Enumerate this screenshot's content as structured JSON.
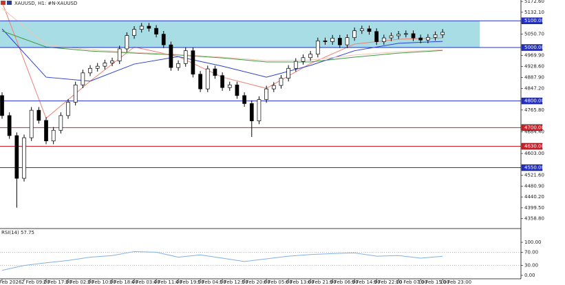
{
  "chart_data": [
    {
      "type": "candlestick",
      "title": "XAUUSD, H1:  #N-XAUUSD",
      "categories": [
        "Feb 2026",
        null,
        null,
        "2 Feb 09:00",
        null,
        null,
        "2 Feb 17:00",
        null,
        null,
        "3 Feb 02:00",
        null,
        null,
        "3 Feb 10:00",
        null,
        null,
        "3 Feb 18:00",
        null,
        null,
        "4 Feb 03:00",
        null,
        null,
        "4 Feb 11:00",
        null,
        null,
        "4 Feb 19:00",
        null,
        null,
        "5 Feb 04:00",
        null,
        null,
        "5 Feb 12:00",
        null,
        null,
        "5 Feb 20:00",
        null,
        null,
        "6 Feb 05:00",
        null,
        null,
        "6 Feb 13:00",
        null,
        null,
        "6 Feb 21:00",
        null,
        null,
        "9 Feb 06:00",
        null,
        null,
        "9 Feb 14:00",
        null,
        null,
        "9 Feb 22:00",
        null,
        null,
        "10 Feb 07:00",
        null,
        null,
        "10 Feb 15:00",
        null,
        null,
        "10 Feb 23:00"
      ],
      "open": [
        4820,
        4745,
        4670,
        4510,
        4662,
        4765,
        4727,
        4650,
        4690,
        4745,
        4795,
        4860,
        4905,
        4922,
        4930,
        4942,
        4950,
        4995,
        5045,
        5068,
        5080,
        5072,
        5050,
        5010,
        4925,
        4940,
        4988,
        4900,
        4845,
        4920,
        4895,
        4850,
        4860,
        4820,
        4790,
        4725,
        4805,
        4845,
        4858,
        4885,
        4922,
        4948,
        4962,
        4975,
        5025,
        5022,
        5035,
        5010,
        5037,
        5063,
        5070,
        5060,
        5022,
        5036,
        5044,
        5050,
        5052,
        5036,
        5028,
        5038,
        5048
      ],
      "high": [
        4832,
        4757,
        4682,
        4674,
        4777,
        4777,
        4739,
        4702,
        4757,
        4807,
        4872,
        4917,
        4934,
        4942,
        4954,
        4962,
        5007,
        5057,
        5080,
        5092,
        5092,
        5084,
        5062,
        5022,
        4952,
        5000,
        5000,
        4912,
        4932,
        4932,
        4907,
        4872,
        4872,
        4832,
        4802,
        4817,
        4857,
        4870,
        4897,
        4934,
        4960,
        4974,
        4987,
        5037,
        5037,
        5047,
        5047,
        5049,
        5075,
        5082,
        5082,
        5072,
        5048,
        5056,
        5062,
        5064,
        5064,
        5048,
        5050,
        5060,
        5069
      ],
      "low": [
        4733,
        4658,
        4400,
        4498,
        4650,
        4715,
        4638,
        4638,
        4678,
        4733,
        4783,
        4848,
        4893,
        4910,
        4918,
        4930,
        4938,
        4983,
        5033,
        5056,
        5060,
        5038,
        4998,
        4913,
        4913,
        4928,
        4888,
        4833,
        4833,
        4883,
        4838,
        4838,
        4808,
        4778,
        4665,
        4713,
        4793,
        4833,
        4846,
        4873,
        4910,
        4936,
        4950,
        4963,
        5010,
        5010,
        4998,
        4998,
        5025,
        5051,
        5048,
        5010,
        5010,
        5024,
        5032,
        5038,
        5024,
        5016,
        5016,
        5026,
        5036
      ],
      "close": [
        4745,
        4670,
        4510,
        4662,
        4765,
        4727,
        4650,
        4690,
        4745,
        4795,
        4860,
        4905,
        4922,
        4930,
        4942,
        4950,
        4995,
        5045,
        5068,
        5080,
        5072,
        5050,
        5010,
        4925,
        4940,
        4988,
        4900,
        4845,
        4920,
        4895,
        4850,
        4860,
        4820,
        4790,
        4725,
        4805,
        4845,
        4858,
        4885,
        4922,
        4948,
        4962,
        4975,
        5025,
        5022,
        5035,
        5010,
        5037,
        5063,
        5070,
        5060,
        5022,
        5036,
        5044,
        5050,
        5052,
        5036,
        5028,
        5038,
        5048,
        5057
      ],
      "up_color": "#ffffff",
      "down_color": "#000000",
      "ylim": [
        4327,
        5178
      ],
      "yticks": [
        {
          "value": 5172.6,
          "label": "5172.60"
        },
        {
          "value": 5132.1,
          "label": "5132.10"
        },
        {
          "value": 5050.7,
          "label": "5050.70"
        },
        {
          "value": 4969.9,
          "label": "4969.90"
        },
        {
          "value": 4928.6,
          "label": "4928.60"
        },
        {
          "value": 4887.9,
          "label": "4887.90"
        },
        {
          "value": 4847.2,
          "label": "4847.20"
        },
        {
          "value": 4765.8,
          "label": "4765.80"
        },
        {
          "value": 4684.4,
          "label": "4684.40"
        },
        {
          "value": 4603,
          "label": "4603.00"
        },
        {
          "value": 4521.6,
          "label": "4521.60"
        },
        {
          "value": 4480.9,
          "label": "4480.90"
        },
        {
          "value": 4440.2,
          "label": "4440.20"
        },
        {
          "value": 4399.5,
          "label": "4399.50"
        },
        {
          "value": 4358.8,
          "label": "4358.80"
        }
      ],
      "zone": {
        "from": 5000,
        "to": 5100,
        "color": "#a9dde6"
      },
      "levels": [
        {
          "value": 5100,
          "label": "5100.00",
          "color": "#2230c8"
        },
        {
          "value": 5000,
          "label": "5000.00",
          "color": "#2230c8"
        },
        {
          "value": 4800,
          "label": "4800.00",
          "color": "#2230c8"
        },
        {
          "value": 4700,
          "label": "4700.00",
          "color": "#d0202a"
        },
        {
          "value": 4630,
          "label": "4630.00",
          "color": "#d0202a"
        },
        {
          "value": 4550,
          "label": "4550.00",
          "color": "#2230c8"
        }
      ],
      "series": [
        {
          "color": "#f08070",
          "x": [
            0,
            6,
            12,
            18,
            24,
            30,
            36,
            42,
            48,
            54,
            60
          ],
          "values": [
            5170,
            4735,
            4874,
            5002,
            4966,
            4889,
            4847,
            4940,
            5013,
            5031,
            5036
          ]
        },
        {
          "color": "#2a3fd6",
          "x": [
            0,
            6,
            12,
            18,
            24,
            30,
            36,
            42,
            48,
            54,
            60
          ],
          "values": [
            5070,
            4889,
            4874,
            4938,
            4966,
            4930,
            4889,
            4933,
            4988,
            5016,
            5023
          ]
        },
        {
          "color": "#3c9a3c",
          "x": [
            0,
            6,
            12,
            18,
            24,
            30,
            36,
            42,
            48,
            54,
            60
          ],
          "values": [
            5062,
            5002,
            4987,
            4979,
            4972,
            4961,
            4946,
            4946,
            4964,
            4979,
            4989
          ]
        },
        {
          "color": "#f4c4b0",
          "x": [
            0,
            6,
            12,
            18,
            24,
            30,
            36,
            42,
            48,
            54,
            60
          ],
          "values": [
            5147,
            5010,
            4992,
            4982,
            4974,
            4964,
            4951,
            4953,
            4972,
            4984,
            4992
          ]
        }
      ]
    },
    {
      "type": "line",
      "title": "RSI(14) 57.75",
      "ylim": [
        0,
        100
      ],
      "yticks": [
        {
          "value": 100,
          "label": "100.00"
        },
        {
          "value": 70,
          "label": "70.00"
        },
        {
          "value": 30,
          "label": "30.00"
        },
        {
          "value": 0,
          "label": "0.00"
        }
      ],
      "levels": [
        70,
        30
      ],
      "series": [
        {
          "color": "#7fb0e8",
          "x": [
            0,
            3,
            6,
            9,
            12,
            15,
            18,
            21,
            24,
            27,
            30,
            33,
            36,
            39,
            42,
            45,
            48,
            51,
            54,
            57,
            60
          ],
          "values": [
            15,
            30,
            38,
            45,
            55,
            60,
            72,
            70,
            55,
            62,
            52,
            42,
            50,
            58,
            63,
            66,
            68,
            58,
            60,
            52,
            57.75
          ]
        }
      ]
    }
  ]
}
